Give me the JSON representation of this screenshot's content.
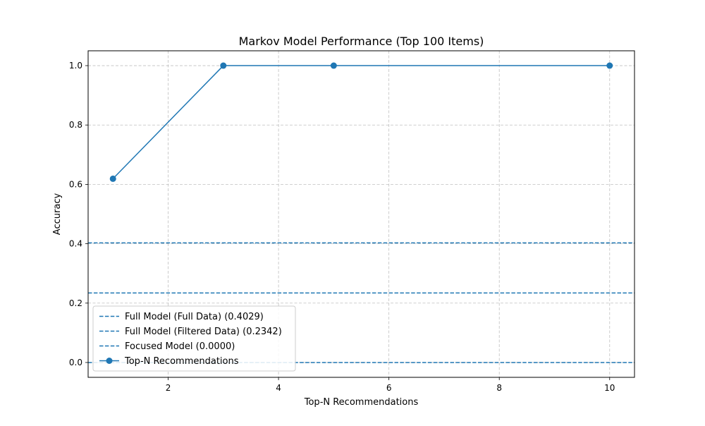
{
  "chart_data": {
    "type": "line",
    "title": "Markov Model Performance (Top 100 Items)",
    "xlabel": "Top-N Recommendations",
    "ylabel": "Accuracy",
    "xlim": [
      0.55,
      10.45
    ],
    "ylim": [
      -0.05,
      1.05
    ],
    "xticks": [
      2,
      4,
      6,
      8,
      10
    ],
    "yticks": [
      0.0,
      0.2,
      0.4,
      0.6,
      0.8,
      1.0
    ],
    "xtick_labels": [
      "2",
      "4",
      "6",
      "8",
      "10"
    ],
    "ytick_labels": [
      "0.0",
      "0.2",
      "0.4",
      "0.6",
      "0.8",
      "1.0"
    ],
    "grid": true,
    "legend_position": "lower-left",
    "series": [
      {
        "name": "Top-N Recommendations",
        "x": [
          1,
          3,
          5,
          10
        ],
        "y": [
          0.619,
          1.0,
          1.0,
          1.0
        ],
        "color": "#1f77b4",
        "marker": "circle",
        "line_style": "solid"
      }
    ],
    "reference_lines": [
      {
        "name": "Full Model (Full Data) (0.4029)",
        "y": 0.4029,
        "color": "#1f77b4",
        "line_style": "dashed"
      },
      {
        "name": "Full Model (Filtered Data) (0.2342)",
        "y": 0.2342,
        "color": "#1f77b4",
        "line_style": "dashed"
      },
      {
        "name": "Focused Model (0.0000)",
        "y": 0.0,
        "color": "#1f77b4",
        "line_style": "dashed"
      }
    ]
  }
}
